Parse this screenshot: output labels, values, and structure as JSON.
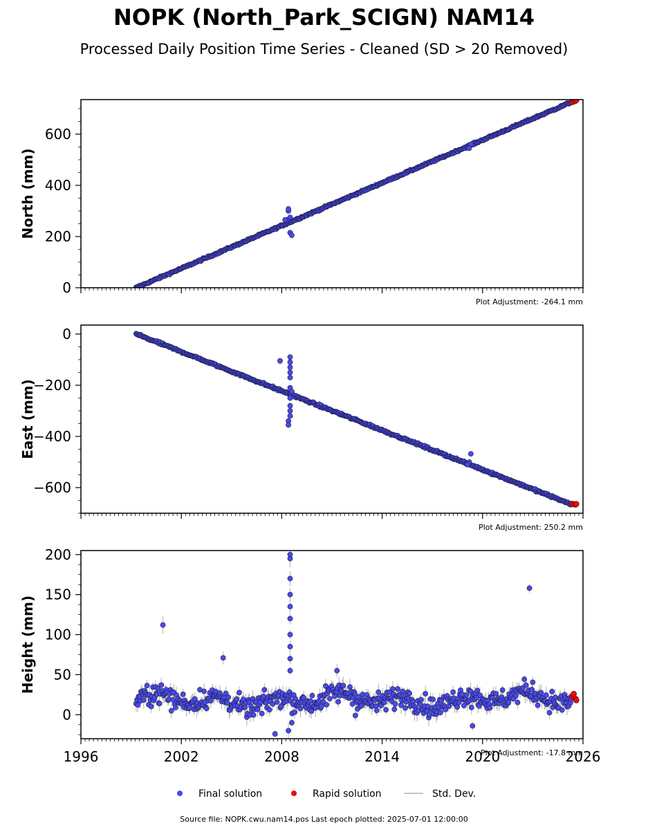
{
  "title": "NOPK (North_Park_SCIGN) NAM14",
  "subtitle": "Processed Daily Position Time Series - Cleaned (SD > 20 Removed)",
  "legend": {
    "placement": "bottom-center",
    "final_label": "Final solution",
    "rapid_label": "Rapid solution",
    "std_label": "Std. Dev."
  },
  "source_note": "Source file: NOPK.cwu.nam14.pos  Last epoch plotted: 2025-07-01 12:00:00",
  "colors": {
    "final": "#4a4ae8",
    "final_edge": "#1a1a40",
    "rapid": "#e01010",
    "std": "#b0b0b0"
  },
  "chart_data": [
    {
      "type": "scatter",
      "ylabel": "North (mm)",
      "adjustment_note": "Plot Adjustment: -264.1 mm",
      "xlim": [
        1996,
        2026
      ],
      "ylim": [
        0,
        735
      ],
      "yticks": [
        0,
        200,
        400,
        600
      ],
      "xticks": [
        1996,
        2002,
        2008,
        2014,
        2020,
        2026
      ],
      "show_xtick_labels": false,
      "final_trend": {
        "x": [
          1999.3,
          2025.3
        ],
        "y": [
          0,
          725
        ],
        "noise_mm": 2.5
      },
      "final_outliers": {
        "x": [
          2008.4,
          2008.4,
          2008.5,
          2008.5,
          2008.6,
          2008.3,
          2008.2,
          2019.3,
          2019.2
        ],
        "y": [
          300,
          308,
          275,
          215,
          205,
          265,
          265,
          560,
          545
        ]
      },
      "rapid": {
        "x": [
          2025.35,
          2025.45,
          2025.55,
          2025.6
        ],
        "y": [
          725,
          728,
          730,
          733
        ]
      }
    },
    {
      "type": "scatter",
      "ylabel": "East (mm)",
      "adjustment_note": "Plot Adjustment: 250.2 mm",
      "xlim": [
        1996,
        2026
      ],
      "ylim": [
        -700,
        35
      ],
      "yticks": [
        0,
        -200,
        -400,
        -600
      ],
      "xticks": [
        1996,
        2002,
        2008,
        2014,
        2020,
        2026
      ],
      "show_xtick_labels": false,
      "final_trend": {
        "x": [
          1999.3,
          2025.3
        ],
        "y": [
          0,
          -665
        ],
        "noise_mm": 3
      },
      "final_outliers": {
        "x": [
          2007.9,
          2008.5,
          2008.5,
          2008.5,
          2008.5,
          2008.5,
          2008.5,
          2008.5,
          2008.5,
          2008.5,
          2008.5,
          2008.4,
          2008.4,
          2008.6,
          2019.3,
          2019.2,
          2019.1
        ],
        "y": [
          -105,
          -90,
          -110,
          -130,
          -150,
          -170,
          -210,
          -250,
          -280,
          -300,
          -320,
          -340,
          -355,
          -225,
          -468,
          -500,
          -510
        ]
      },
      "rapid": {
        "x": [
          2025.35,
          2025.45,
          2025.55,
          2025.6
        ],
        "y": [
          -663,
          -665,
          -666,
          -664
        ]
      }
    },
    {
      "type": "scatter",
      "ylabel": "Height (mm)",
      "adjustment_note": "Plot Adjustment: -17.8 mm",
      "xlim": [
        1996,
        2026
      ],
      "ylim": [
        -30,
        205
      ],
      "yticks": [
        0,
        50,
        100,
        150,
        200
      ],
      "xticks": [
        1996,
        2002,
        2008,
        2014,
        2020,
        2026
      ],
      "show_xtick_labels": true,
      "final_trend": {
        "x": [
          1999.3,
          2025.3
        ],
        "y": [
          17,
          20
        ],
        "noise_mm": 9
      },
      "final_outliers": {
        "x": [
          2000.9,
          2004.5,
          2007.6,
          2008.5,
          2008.5,
          2008.5,
          2008.5,
          2008.5,
          2008.5,
          2008.5,
          2008.5,
          2008.5,
          2008.5,
          2008.4,
          2008.6,
          2011.3,
          2012.4,
          2019.4,
          2022.8
        ],
        "y": [
          112,
          71,
          -24,
          200,
          195,
          170,
          150,
          135,
          120,
          100,
          85,
          70,
          55,
          -20,
          -10,
          55,
          -1,
          -14,
          158
        ]
      },
      "rapid": {
        "x": [
          2025.35,
          2025.45,
          2025.55,
          2025.6
        ],
        "y": [
          23,
          26,
          20,
          18
        ]
      }
    }
  ]
}
